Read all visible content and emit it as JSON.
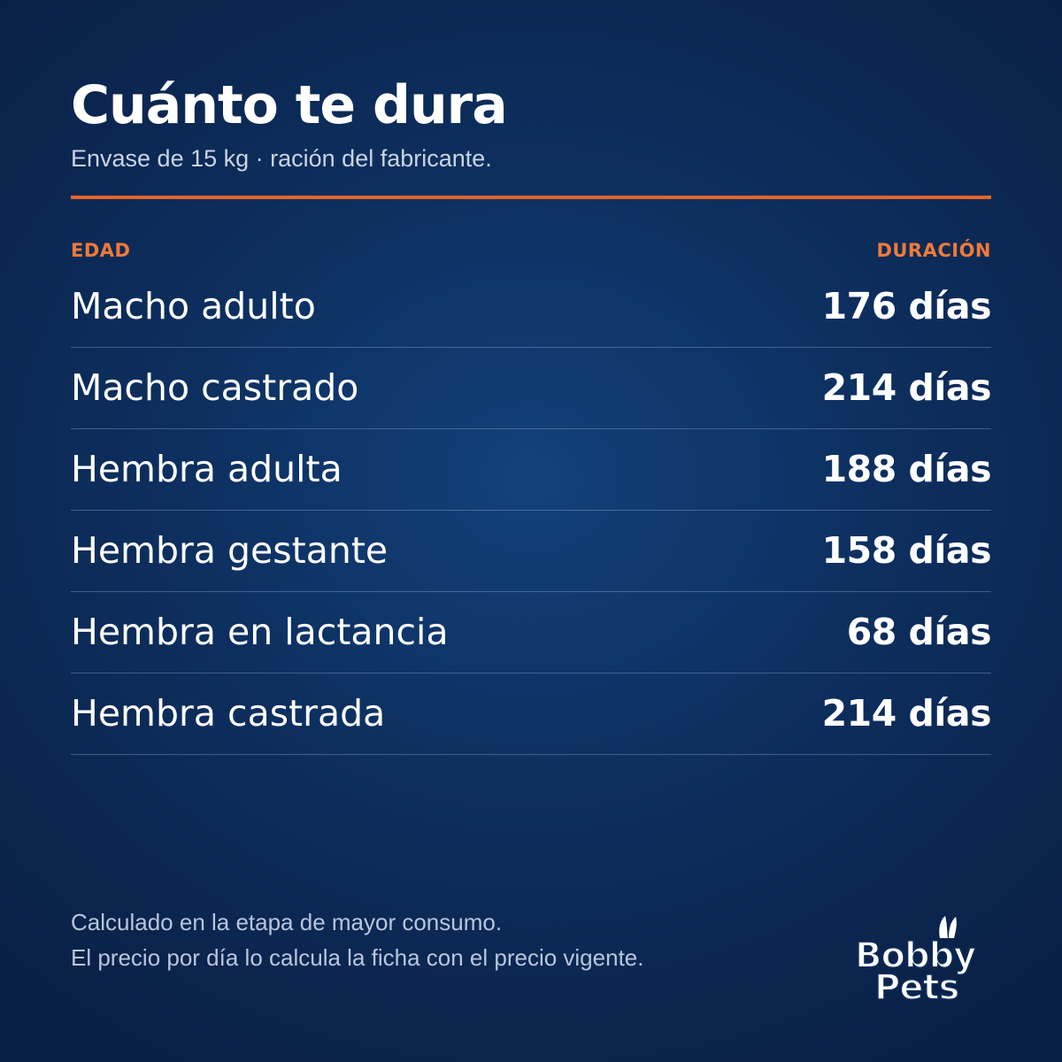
{
  "header": {
    "title": "Cuánto te dura",
    "subtitle": "Envase de 15 kg · ración del fabricante."
  },
  "table": {
    "col_left": "EDAD",
    "col_right": "DURACIÓN",
    "rows": [
      {
        "label": "Macho adulto",
        "value": "176 días"
      },
      {
        "label": "Macho castrado",
        "value": "214 días"
      },
      {
        "label": "Hembra adulta",
        "value": "188 días"
      },
      {
        "label": "Hembra gestante",
        "value": "158 días"
      },
      {
        "label": "Hembra en lactancia",
        "value": "68 días"
      },
      {
        "label": "Hembra castrada",
        "value": "214 días"
      }
    ]
  },
  "footer": {
    "line1": "Calculado en la etapa de mayor consumo.",
    "line2": "El precio por día lo calcula la ficha con el precio vigente."
  },
  "logo": {
    "word1": "Bobby",
    "word2": "Pets"
  },
  "colors": {
    "background": "#0d2f5f",
    "accent": "#e8642c",
    "text": "#ffffff",
    "muted": "#c9d4e6"
  }
}
